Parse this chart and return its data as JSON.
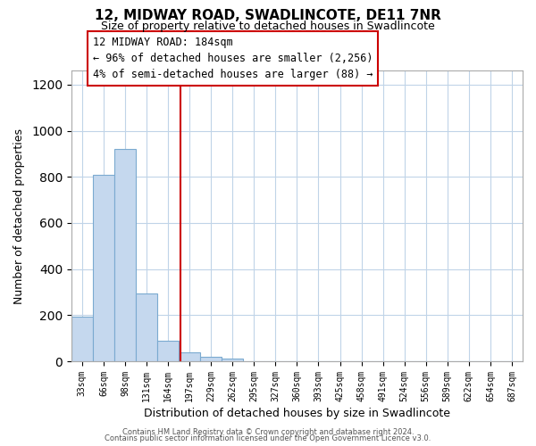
{
  "title": "12, MIDWAY ROAD, SWADLINCOTE, DE11 7NR",
  "subtitle": "Size of property relative to detached houses in Swadlincote",
  "xlabel": "Distribution of detached houses by size in Swadlincote",
  "ylabel": "Number of detached properties",
  "bar_labels": [
    "33sqm",
    "66sqm",
    "98sqm",
    "131sqm",
    "164sqm",
    "197sqm",
    "229sqm",
    "262sqm",
    "295sqm",
    "327sqm",
    "360sqm",
    "393sqm",
    "425sqm",
    "458sqm",
    "491sqm",
    "524sqm",
    "556sqm",
    "589sqm",
    "622sqm",
    "654sqm",
    "687sqm"
  ],
  "bar_values": [
    195,
    810,
    920,
    295,
    88,
    40,
    18,
    10,
    0,
    0,
    0,
    0,
    0,
    0,
    0,
    0,
    0,
    0,
    0,
    0,
    0
  ],
  "bar_color": "#c5d8ee",
  "bar_edge_color": "#7baad0",
  "property_line_x": 4.57,
  "property_line_color": "#cc0000",
  "ylim": [
    0,
    1260
  ],
  "yticks": [
    0,
    200,
    400,
    600,
    800,
    1000,
    1200
  ],
  "annotation_title": "12 MIDWAY ROAD: 184sqm",
  "annotation_line1": "← 96% of detached houses are smaller (2,256)",
  "annotation_line2": "4% of semi-detached houses are larger (88) →",
  "footer_line1": "Contains HM Land Registry data © Crown copyright and database right 2024.",
  "footer_line2": "Contains public sector information licensed under the Open Government Licence v3.0.",
  "background_color": "#ffffff",
  "grid_color": "#c0d4e8"
}
